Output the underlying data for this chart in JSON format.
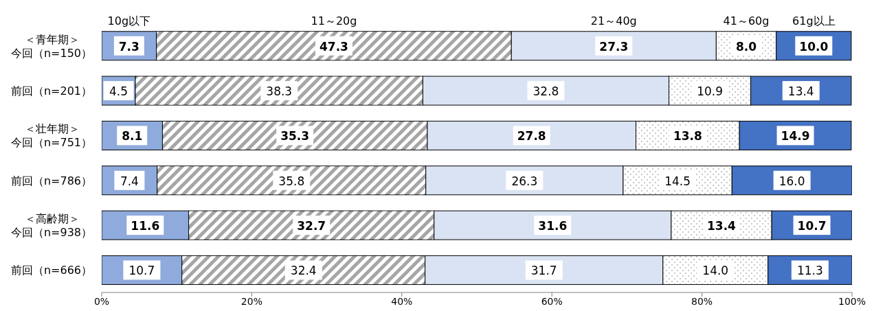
{
  "chart_data": {
    "type": "bar",
    "orientation": "horizontal",
    "stacked": true,
    "categories": [
      "＜青年期＞今回（n=150）",
      "前回（n=201）",
      "＜壮年期＞今回（n=751）",
      "前回（n=786）",
      "＜高齢期＞今回（n=938）",
      "前回（n=666）"
    ],
    "series": [
      {
        "name": "10g以下",
        "color": "#8faadc",
        "values": [
          7.3,
          4.5,
          8.1,
          7.4,
          11.6,
          10.7
        ]
      },
      {
        "name": "11～20g",
        "color": "#a6a6a6",
        "values": [
          47.3,
          38.3,
          35.3,
          35.8,
          32.7,
          32.4
        ]
      },
      {
        "name": "21～40g",
        "color": "#dae3f3",
        "values": [
          27.3,
          32.8,
          27.8,
          26.3,
          31.6,
          31.7
        ]
      },
      {
        "name": "41～60g",
        "color": "#ffffff",
        "values": [
          8.0,
          10.9,
          13.8,
          14.5,
          13.4,
          14.0
        ],
        "value_labels": [
          "8.0",
          "10.9",
          "13.8",
          "14.5",
          "13.4",
          "14.0"
        ]
      },
      {
        "name": "61g以上",
        "color": "#4472c4",
        "values": [
          10.0,
          13.4,
          14.9,
          16.0,
          10.7,
          11.3
        ],
        "value_labels": [
          "10.0",
          "13.4",
          "14.9",
          "16.0",
          "10.7",
          "11.3"
        ]
      }
    ],
    "xlim": [
      0,
      100
    ],
    "xticks": [
      {
        "value": 0,
        "label": "0%"
      },
      {
        "value": 20,
        "label": "20%"
      },
      {
        "value": 40,
        "label": "40%"
      },
      {
        "value": 60,
        "label": "60%"
      },
      {
        "value": 80,
        "label": "80%"
      },
      {
        "value": 100,
        "label": "100%"
      }
    ],
    "data_labels": true,
    "legend": "top",
    "grid": false
  }
}
